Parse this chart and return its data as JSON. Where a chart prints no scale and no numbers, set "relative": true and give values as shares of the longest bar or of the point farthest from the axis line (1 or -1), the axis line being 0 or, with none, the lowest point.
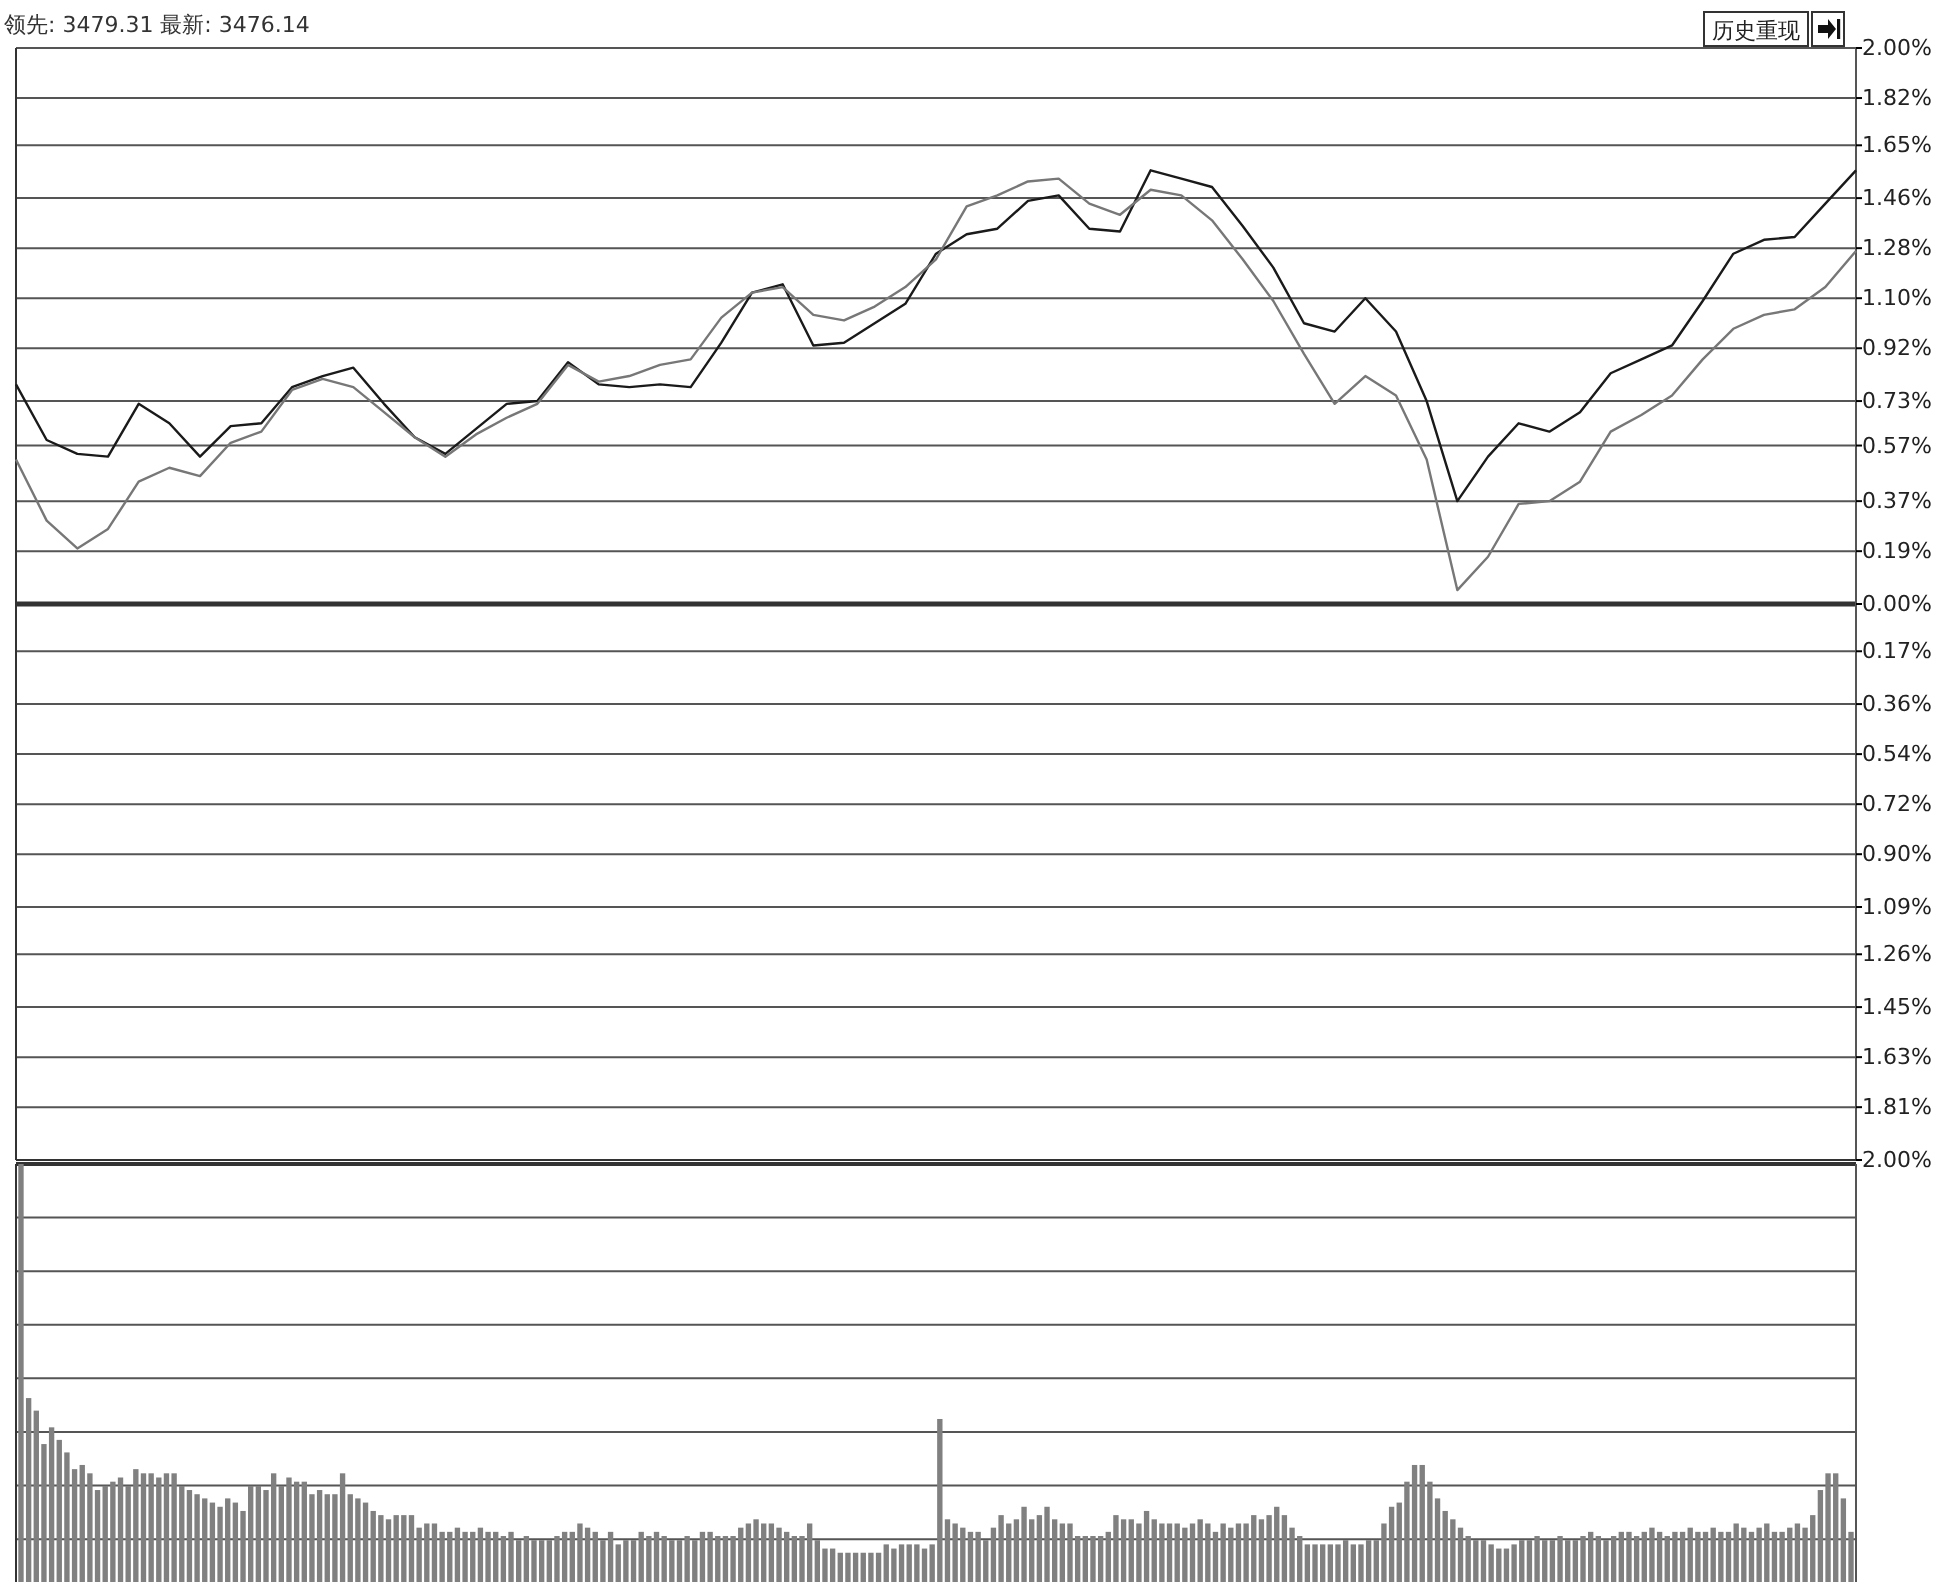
{
  "chart_data": [
    {
      "type": "line",
      "annotations": [
        "领先: 3479.31 最新: 3476.14",
        "历史重现"
      ],
      "categories": [
        null,
        null,
        null,
        null,
        null,
        null,
        null,
        null,
        null,
        null,
        null,
        null,
        null,
        null,
        null,
        null,
        null,
        null,
        null,
        null,
        null,
        null,
        null,
        null,
        null,
        null,
        null,
        null,
        null,
        null,
        null,
        null,
        null,
        null,
        null,
        null,
        null,
        null,
        null,
        null,
        null,
        null,
        null,
        null,
        null,
        null,
        null,
        null,
        null,
        null,
        null,
        null,
        null,
        null,
        null,
        null,
        null,
        null,
        null,
        null,
        null
      ],
      "ylim": [
        -2,
        2
      ],
      "yticks": [
        {
          "value": 2,
          "label": "2.00%"
        },
        {
          "value": 1.82,
          "label": "1.82%"
        },
        {
          "value": 1.65,
          "label": "1.65%"
        },
        {
          "value": 1.46,
          "label": "1.46%"
        },
        {
          "value": 1.28,
          "label": "1.28%"
        },
        {
          "value": 1.1,
          "label": "1.10%"
        },
        {
          "value": 0.92,
          "label": "0.92%"
        },
        {
          "value": 0.73,
          "label": "0.73%"
        },
        {
          "value": 0.57,
          "label": "0.57%"
        },
        {
          "value": 0.37,
          "label": "0.37%"
        },
        {
          "value": 0.19,
          "label": "0.19%"
        },
        {
          "value": 0,
          "label": "0.00%"
        },
        {
          "value": -0.17,
          "label": "0.17%"
        },
        {
          "value": -0.36,
          "label": "0.36%"
        },
        {
          "value": -0.54,
          "label": "0.54%"
        },
        {
          "value": -0.72,
          "label": "0.72%"
        },
        {
          "value": -0.9,
          "label": "0.90%"
        },
        {
          "value": -1.09,
          "label": "1.09%"
        },
        {
          "value": -1.26,
          "label": "1.26%"
        },
        {
          "value": -1.45,
          "label": "1.45%"
        },
        {
          "value": -1.63,
          "label": "1.63%"
        },
        {
          "value": -1.81,
          "label": "1.81%"
        },
        {
          "value": -2,
          "label": "2.00%"
        }
      ],
      "grid": true,
      "tick_labels": "y",
      "marker": "none",
      "line_style": "solid",
      "series": [
        {
          "color": "#1a1a1a",
          "values": [
            0.79,
            0.59,
            0.54,
            0.53,
            0.72,
            0.65,
            0.53,
            0.64,
            0.65,
            0.78,
            0.82,
            0.85,
            0.72,
            0.6,
            0.54,
            0.63,
            0.72,
            0.73,
            0.87,
            0.79,
            0.78,
            0.79,
            0.78,
            0.94,
            1.12,
            1.15,
            0.93,
            0.94,
            1.01,
            1.08,
            1.26,
            1.33,
            1.35,
            1.45,
            1.47,
            1.35,
            1.34,
            1.56,
            1.53,
            1.5,
            1.36,
            1.21,
            1.01,
            0.98,
            1.1,
            0.98,
            0.73,
            0.37,
            0.53,
            0.65,
            0.62,
            0.69,
            0.83,
            0.88,
            0.93,
            1.09,
            1.26,
            1.31,
            1.32,
            1.44,
            1.56
          ]
        },
        {
          "color": "#777777",
          "values": [
            0.52,
            0.3,
            0.2,
            0.27,
            0.44,
            0.49,
            0.46,
            0.58,
            0.62,
            0.77,
            0.81,
            0.78,
            0.69,
            0.6,
            0.53,
            0.61,
            0.67,
            0.72,
            0.86,
            0.8,
            0.82,
            0.86,
            0.88,
            1.03,
            1.12,
            1.14,
            1.04,
            1.02,
            1.07,
            1.14,
            1.24,
            1.43,
            1.47,
            1.52,
            1.53,
            1.44,
            1.4,
            1.49,
            1.47,
            1.38,
            1.24,
            1.09,
            0.9,
            0.72,
            0.82,
            0.75,
            0.52,
            0.05,
            0.17,
            0.36,
            0.37,
            0.44,
            0.62,
            0.68,
            0.75,
            0.88,
            0.99,
            1.04,
            1.06,
            1.14,
            1.27
          ]
        }
      ]
    },
    {
      "type": "bar",
      "relative": true,
      "grid": true,
      "color": "#808080",
      "categories": [
        null,
        null,
        null,
        null,
        null,
        null,
        null,
        null,
        null,
        null,
        null,
        null,
        null,
        null,
        null,
        null,
        null,
        null,
        null,
        null,
        null,
        null,
        null,
        null,
        null,
        null,
        null,
        null,
        null,
        null,
        null,
        null,
        null,
        null,
        null,
        null,
        null,
        null,
        null,
        null,
        null,
        null,
        null,
        null,
        null,
        null,
        null,
        null,
        null,
        null,
        null,
        null,
        null,
        null,
        null,
        null,
        null,
        null,
        null,
        null,
        null,
        null,
        null,
        null,
        null,
        null,
        null,
        null,
        null,
        null,
        null,
        null,
        null,
        null,
        null,
        null,
        null,
        null,
        null,
        null,
        null,
        null,
        null,
        null,
        null,
        null,
        null,
        null,
        null,
        null,
        null,
        null,
        null,
        null,
        null,
        null,
        null,
        null,
        null,
        null,
        null,
        null,
        null,
        null,
        null,
        null,
        null,
        null,
        null,
        null,
        null,
        null,
        null,
        null,
        null,
        null,
        null,
        null,
        null,
        null,
        null,
        null,
        null,
        null,
        null,
        null,
        null,
        null,
        null,
        null,
        null,
        null,
        null,
        null,
        null,
        null,
        null,
        null,
        null,
        null,
        null,
        null,
        null,
        null,
        null,
        null,
        null,
        null,
        null,
        null,
        null,
        null,
        null,
        null,
        null,
        null,
        null,
        null,
        null,
        null,
        null,
        null,
        null,
        null,
        null,
        null,
        null,
        null,
        null,
        null,
        null,
        null,
        null,
        null,
        null,
        null,
        null,
        null,
        null,
        null,
        null,
        null,
        null,
        null,
        null,
        null,
        null,
        null,
        null,
        null,
        null,
        null,
        null,
        null,
        null,
        null,
        null,
        null,
        null,
        null,
        null,
        null,
        null,
        null,
        null,
        null,
        null,
        null,
        null,
        null,
        null,
        null,
        null,
        null,
        null,
        null,
        null,
        null,
        null,
        null,
        null,
        null,
        null,
        null,
        null,
        null,
        null,
        null,
        null,
        null,
        null,
        null,
        null,
        null,
        null,
        null,
        null,
        null,
        null,
        null
      ],
      "values": [
        1.0,
        0.44,
        0.41,
        0.33,
        0.37,
        0.34,
        0.31,
        0.27,
        0.28,
        0.26,
        0.22,
        0.23,
        0.24,
        0.25,
        0.23,
        0.27,
        0.26,
        0.26,
        0.25,
        0.26,
        0.26,
        0.23,
        0.22,
        0.21,
        0.2,
        0.19,
        0.18,
        0.2,
        0.19,
        0.17,
        0.23,
        0.23,
        0.22,
        0.26,
        0.23,
        0.25,
        0.24,
        0.24,
        0.21,
        0.22,
        0.21,
        0.21,
        0.26,
        0.21,
        0.2,
        0.19,
        0.17,
        0.16,
        0.15,
        0.16,
        0.16,
        0.16,
        0.13,
        0.14,
        0.14,
        0.12,
        0.12,
        0.13,
        0.12,
        0.12,
        0.13,
        0.12,
        0.12,
        0.11,
        0.12,
        0.1,
        0.11,
        0.1,
        0.1,
        0.1,
        0.11,
        0.12,
        0.12,
        0.14,
        0.13,
        0.12,
        0.1,
        0.12,
        0.09,
        0.1,
        0.1,
        0.12,
        0.11,
        0.12,
        0.11,
        0.1,
        0.1,
        0.11,
        0.1,
        0.12,
        0.12,
        0.11,
        0.11,
        0.11,
        0.13,
        0.14,
        0.15,
        0.14,
        0.14,
        0.13,
        0.12,
        0.11,
        0.11,
        0.14,
        0.1,
        0.08,
        0.08,
        0.07,
        0.07,
        0.07,
        0.07,
        0.07,
        0.07,
        0.09,
        0.08,
        0.09,
        0.09,
        0.09,
        0.08,
        0.09,
        0.39,
        0.15,
        0.14,
        0.13,
        0.12,
        0.12,
        0.1,
        0.13,
        0.16,
        0.14,
        0.15,
        0.18,
        0.15,
        0.16,
        0.18,
        0.15,
        0.14,
        0.14,
        0.11,
        0.11,
        0.11,
        0.11,
        0.12,
        0.16,
        0.15,
        0.15,
        0.14,
        0.17,
        0.15,
        0.14,
        0.14,
        0.14,
        0.13,
        0.14,
        0.15,
        0.14,
        0.12,
        0.14,
        0.13,
        0.14,
        0.14,
        0.16,
        0.15,
        0.16,
        0.18,
        0.16,
        0.13,
        0.11,
        0.09,
        0.09,
        0.09,
        0.09,
        0.09,
        0.1,
        0.09,
        0.09,
        0.1,
        0.1,
        0.14,
        0.18,
        0.19,
        0.24,
        0.28,
        0.28,
        0.24,
        0.2,
        0.17,
        0.15,
        0.13,
        0.11,
        0.1,
        0.1,
        0.09,
        0.08,
        0.08,
        0.09,
        0.1,
        0.1,
        0.11,
        0.1,
        0.1,
        0.11,
        0.1,
        0.1,
        0.11,
        0.12,
        0.11,
        0.1,
        0.11,
        0.12,
        0.12,
        0.11,
        0.12,
        0.13,
        0.12,
        0.11,
        0.12,
        0.12,
        0.13,
        0.12,
        0.12,
        0.13,
        0.12,
        0.12,
        0.14,
        0.13,
        0.12,
        0.13,
        0.14,
        0.12,
        0.12,
        0.13,
        0.14,
        0.13,
        0.16,
        0.22,
        0.26,
        0.26,
        0.2,
        0.12
      ]
    }
  ]
}
